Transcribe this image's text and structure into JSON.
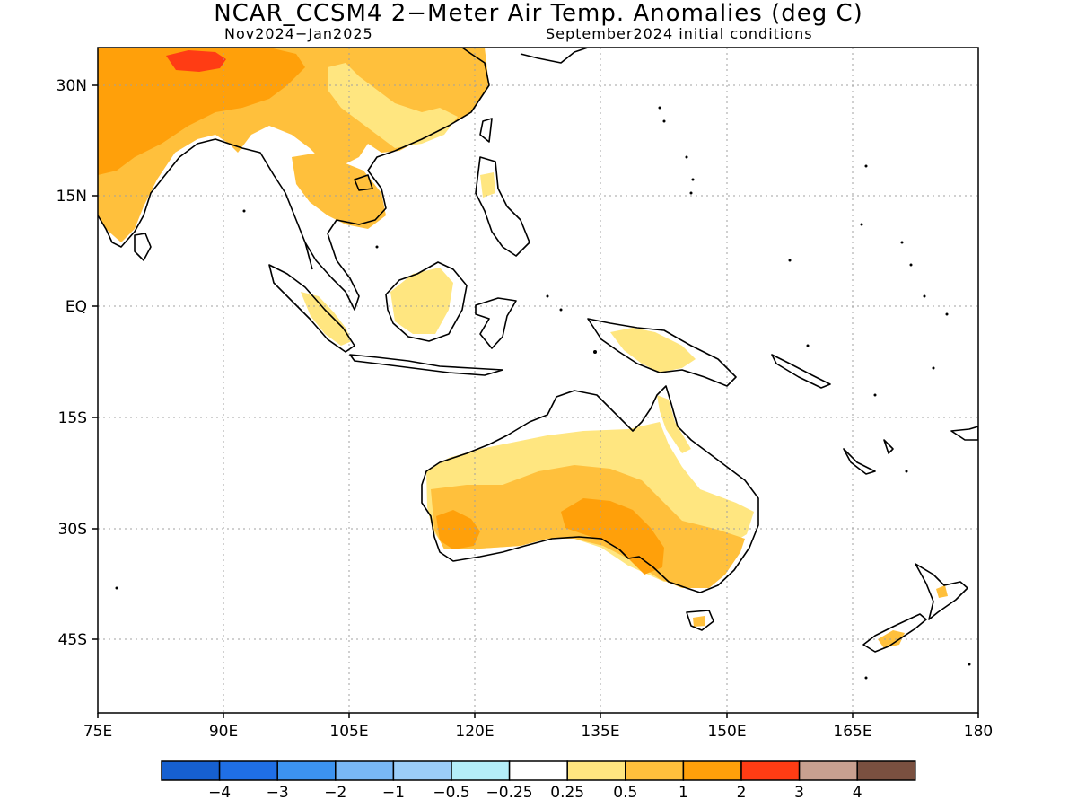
{
  "title": "NCAR_CCSM4 2−Meter Air Temp. Anomalies (deg C)",
  "subtitle_left": "Nov2024−Jan2025",
  "subtitle_right": "September2024 initial conditions",
  "lat_labels": [
    "30N",
    "15N",
    "EQ",
    "15S",
    "30S",
    "45S"
  ],
  "lon_labels": [
    "75E",
    "90E",
    "105E",
    "120E",
    "135E",
    "150E",
    "165E",
    "180"
  ],
  "colorbar": {
    "colors": [
      "#1660d0",
      "#1f6fe6",
      "#3c93f0",
      "#79b8f6",
      "#9bcdf8",
      "#b4eef8",
      "#ffffff",
      "#ffe680",
      "#ffc03c",
      "#ffa00a",
      "#ff3c14",
      "#c8a090",
      "#7a5040"
    ],
    "labels": [
      "−4",
      "−3",
      "−2",
      "−1",
      "−0.5",
      "−0.25",
      "0.25",
      "0.5",
      "1",
      "2",
      "3",
      "4"
    ]
  },
  "map": {
    "lon_range": [
      75,
      180
    ],
    "lat_range": [
      -55,
      35
    ]
  }
}
